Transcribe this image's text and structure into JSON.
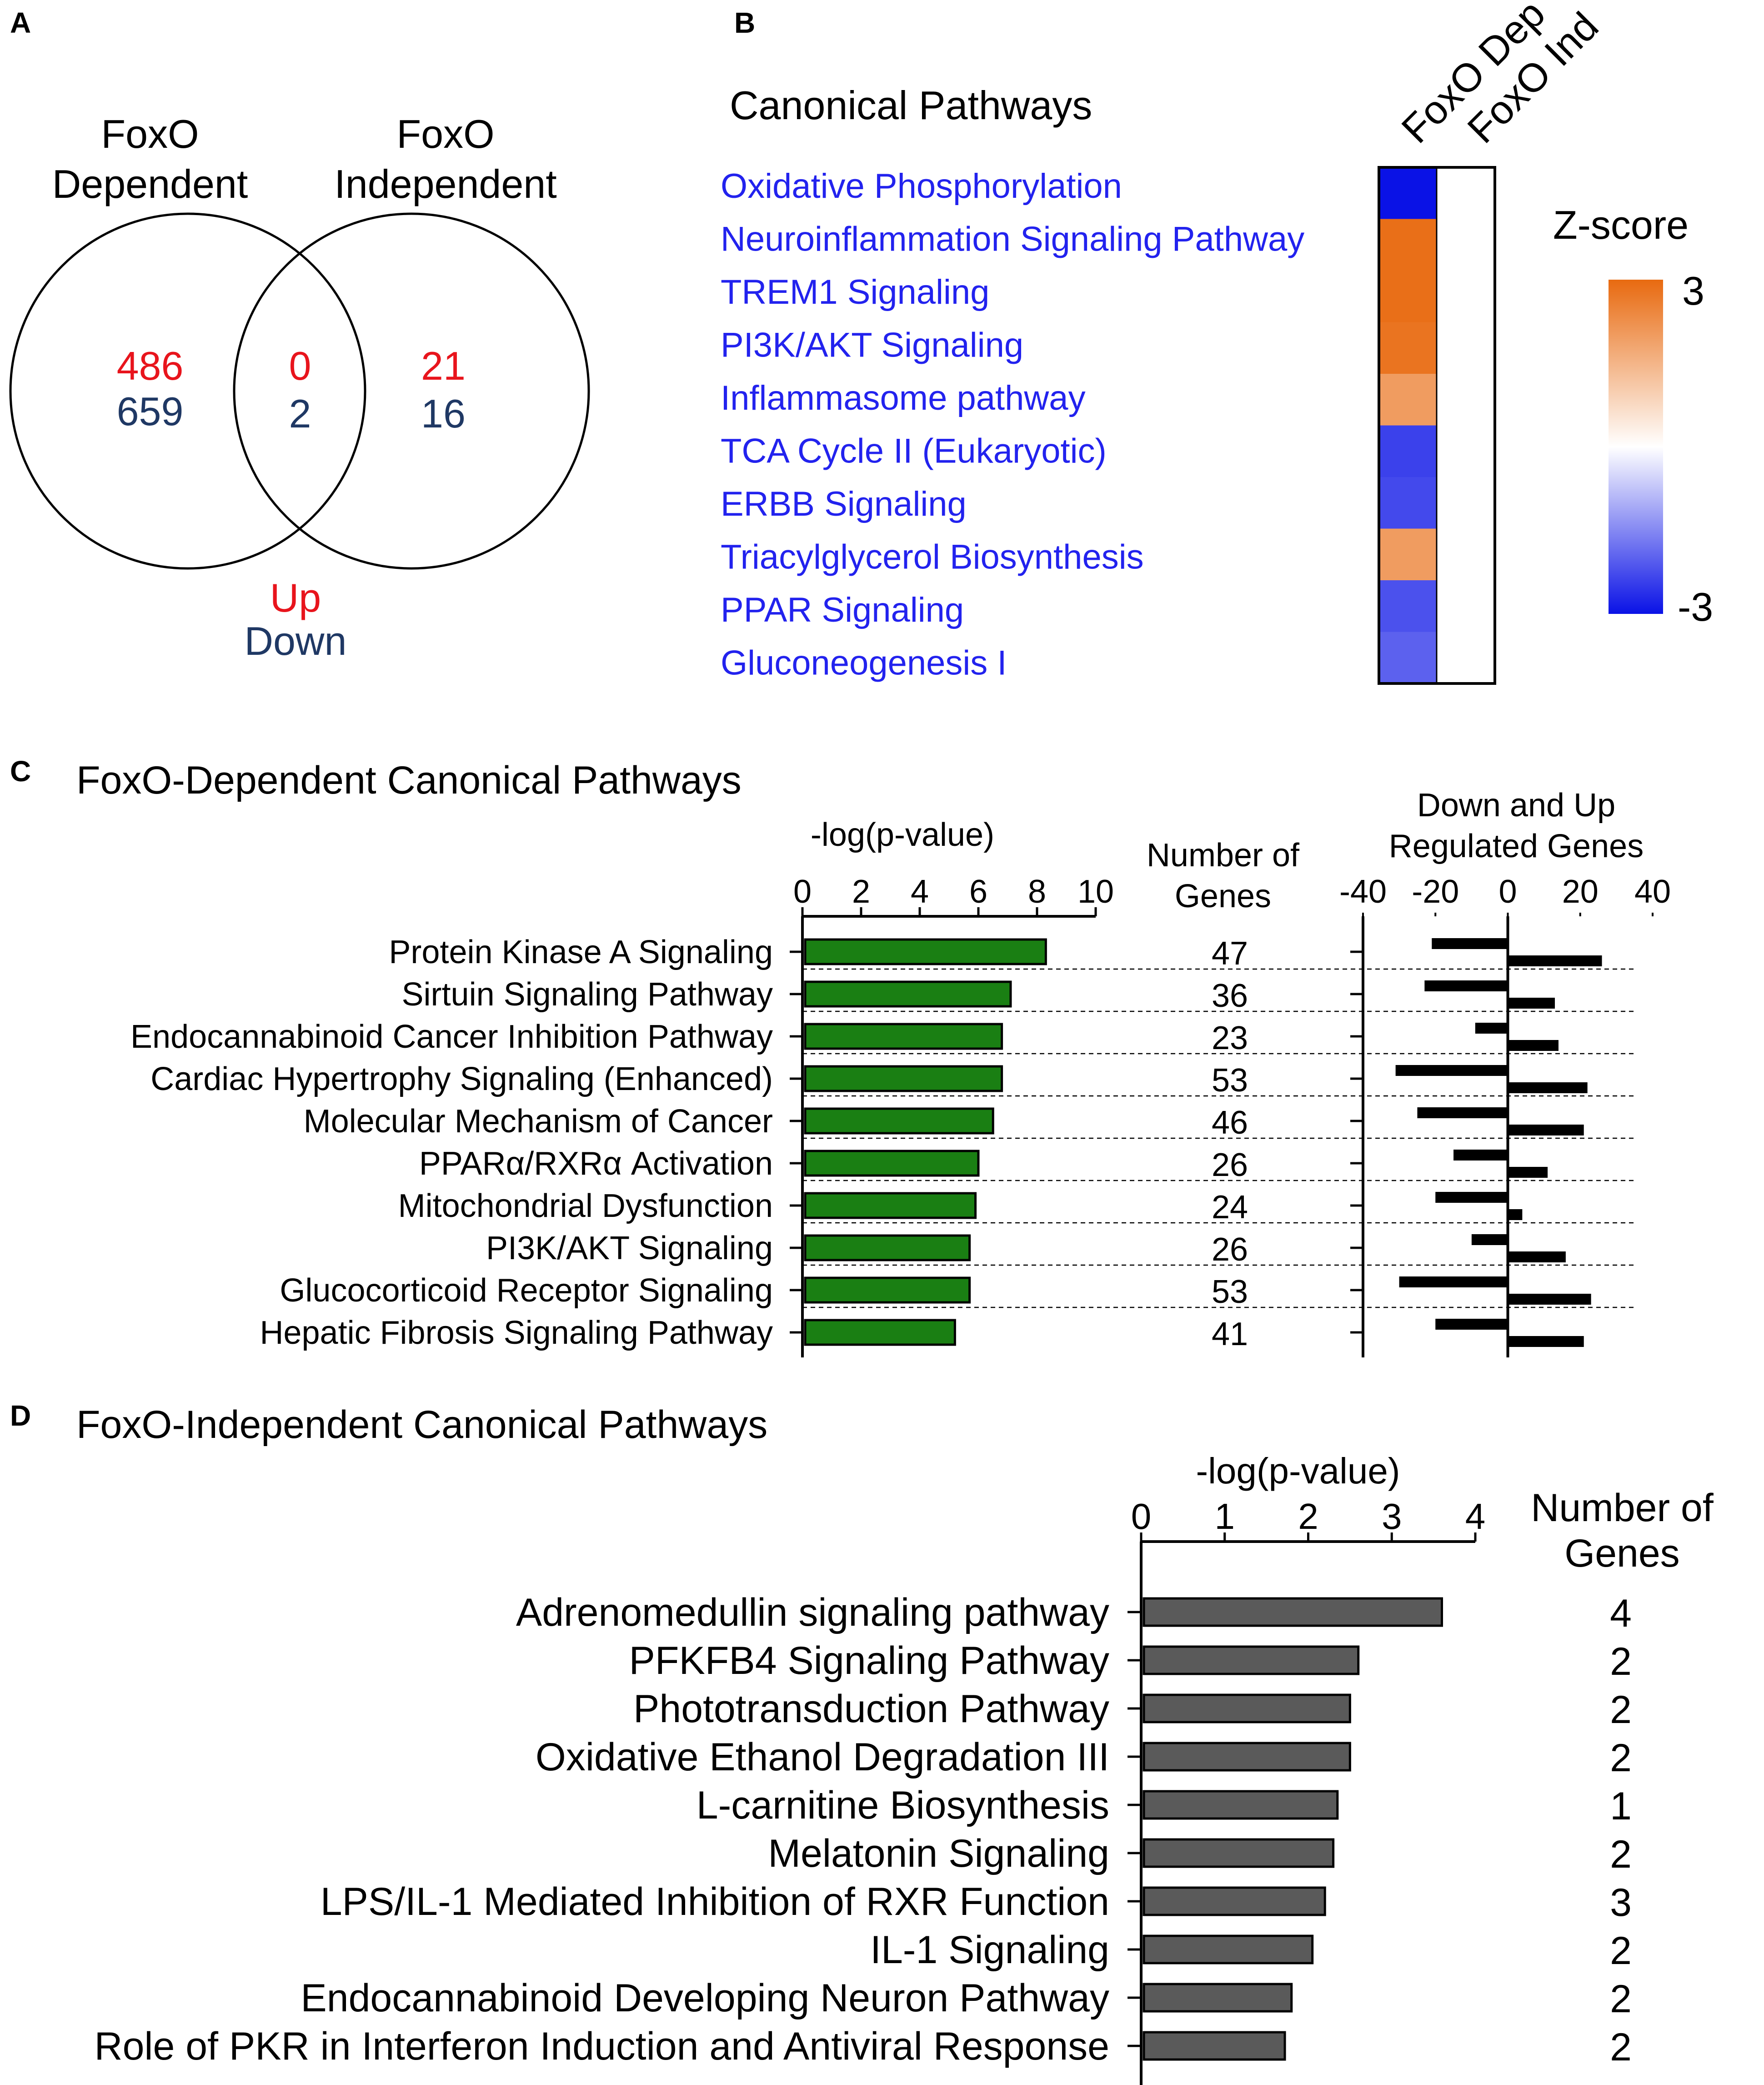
{
  "panels": {
    "A": {
      "letter": "A",
      "left_title": [
        "FoxO",
        "Dependent"
      ],
      "right_title": [
        "FoxO",
        "Independent"
      ],
      "left_up": "486",
      "left_down": "659",
      "mid_up": "0",
      "mid_down": "2",
      "right_up": "21",
      "right_down": "16",
      "legend_up": "Up",
      "legend_down": "Down",
      "colors": {
        "up": "#e8141c",
        "down": "#1f3864"
      }
    },
    "B": {
      "letter": "B",
      "title": "Canonical Pathways",
      "col_labels": [
        "FoxO Dep",
        "FoxO Ind"
      ],
      "legend_title": "Z-score",
      "legend_max": "3",
      "legend_min": "-3",
      "colors": {
        "pos": "#e86a10",
        "mid": "#ffffff",
        "neg": "#0a12e6",
        "text": "#2222ee"
      }
    },
    "C": {
      "letter": "C",
      "title": "FoxO-Dependent Canonical Pathways",
      "bar_axis_label": "-log(p-value)",
      "genes_label": [
        "Number of",
        "Genes"
      ],
      "reg_label": [
        "Down and Up",
        "Regulated Genes"
      ],
      "colors": {
        "bar": "#1a7f13"
      }
    },
    "D": {
      "letter": "D",
      "title": "FoxO-Independent Canonical Pathways",
      "bar_axis_label": "-log(p-value)",
      "genes_label": [
        "Number of",
        "Genes"
      ],
      "colors": {
        "bar": "#5a5a5a"
      }
    }
  },
  "chart_data": [
    {
      "type": "heatmap",
      "panel": "B",
      "title": "Canonical Pathways",
      "rows": [
        "Oxidative Phosphorylation",
        "Neuroinflammation Signaling Pathway",
        "TREM1 Signaling",
        "PI3K/AKT Signaling",
        "Inflammasome pathway",
        "TCA Cycle II (Eukaryotic)",
        "ERBB Signaling",
        "Triacylglycerol Biosynthesis",
        "PPAR Signaling",
        "Gluconeogenesis I"
      ],
      "columns": [
        "FoxO Dep",
        "FoxO Ind"
      ],
      "values": [
        [
          -3.0,
          0
        ],
        [
          2.9,
          0
        ],
        [
          2.9,
          0
        ],
        [
          2.8,
          0
        ],
        [
          2.0,
          0
        ],
        [
          -2.4,
          0
        ],
        [
          -2.3,
          0
        ],
        [
          2.0,
          0
        ],
        [
          -2.2,
          0
        ],
        [
          -2.0,
          0
        ]
      ],
      "zlim": [
        -3,
        3
      ],
      "legend_title": "Z-score"
    },
    {
      "type": "bar",
      "panel": "C",
      "orientation": "horizontal",
      "title": "FoxO-Dependent Canonical Pathways",
      "xlabel": "-log(p-value)",
      "xlim": [
        0,
        10
      ],
      "xticks": [
        0,
        2,
        4,
        6,
        8,
        10
      ],
      "categories": [
        "Protein Kinase A Signaling",
        "Sirtuin Signaling Pathway",
        "Endocannabinoid Cancer Inhibition Pathway",
        "Cardiac Hypertrophy Signaling (Enhanced)",
        "Molecular Mechanism of Cancer",
        "PPARα/RXRα Activation",
        "Mitochondrial Dysfunction",
        "PI3K/AKT Signaling",
        "Glucocorticoid Receptor Signaling",
        "Hepatic Fibrosis Signaling Pathway"
      ],
      "values": [
        8.3,
        7.1,
        6.8,
        6.8,
        6.5,
        6.0,
        5.9,
        5.7,
        5.7,
        5.2
      ],
      "num_genes": [
        "47",
        "36",
        "23",
        "53",
        "46",
        "26",
        "24",
        "26",
        "53",
        "41"
      ]
    },
    {
      "type": "bar",
      "panel": "C",
      "orientation": "horizontal",
      "title": "Down and Up Regulated Genes",
      "xlim": [
        -40,
        40
      ],
      "xticks": [
        -40,
        -20,
        0,
        20,
        40
      ],
      "categories": [
        "Protein Kinase A Signaling",
        "Sirtuin Signaling Pathway",
        "Endocannabinoid Cancer Inhibition Pathway",
        "Cardiac Hypertrophy Signaling (Enhanced)",
        "Molecular Mechanism of Cancer",
        "PPARα/RXRα Activation",
        "Mitochondrial Dysfunction",
        "PI3K/AKT Signaling",
        "Glucocorticoid Receptor Signaling",
        "Hepatic Fibrosis Signaling Pathway"
      ],
      "series": [
        {
          "name": "Down",
          "values": [
            -21,
            -23,
            -9,
            -31,
            -25,
            -15,
            -20,
            -10,
            -30,
            -20
          ]
        },
        {
          "name": "Up",
          "values": [
            26,
            13,
            14,
            22,
            21,
            11,
            4,
            16,
            23,
            21
          ]
        }
      ]
    },
    {
      "type": "bar",
      "panel": "D",
      "orientation": "horizontal",
      "title": "FoxO-Independent Canonical Pathways",
      "xlabel": "-log(p-value)",
      "xlim": [
        0,
        4
      ],
      "xticks": [
        0,
        1,
        2,
        3,
        4
      ],
      "categories": [
        "Adrenomedullin signaling pathway",
        "PFKFB4 Signaling Pathway",
        "Phototransduction Pathway",
        "Oxidative Ethanol Degradation III",
        "L-carnitine Biosynthesis",
        "Melatonin Signaling",
        "LPS/IL-1 Mediated Inhibition of RXR Function",
        "IL-1 Signaling",
        "Endocannabinoid Developing Neuron Pathway",
        "Role of PKR in Interferon Induction and Antiviral Response"
      ],
      "values": [
        3.6,
        2.6,
        2.5,
        2.5,
        2.35,
        2.3,
        2.2,
        2.05,
        1.8,
        1.72
      ],
      "num_genes": [
        "4",
        "2",
        "2",
        "2",
        "1",
        "2",
        "3",
        "2",
        "2",
        "2"
      ]
    }
  ]
}
